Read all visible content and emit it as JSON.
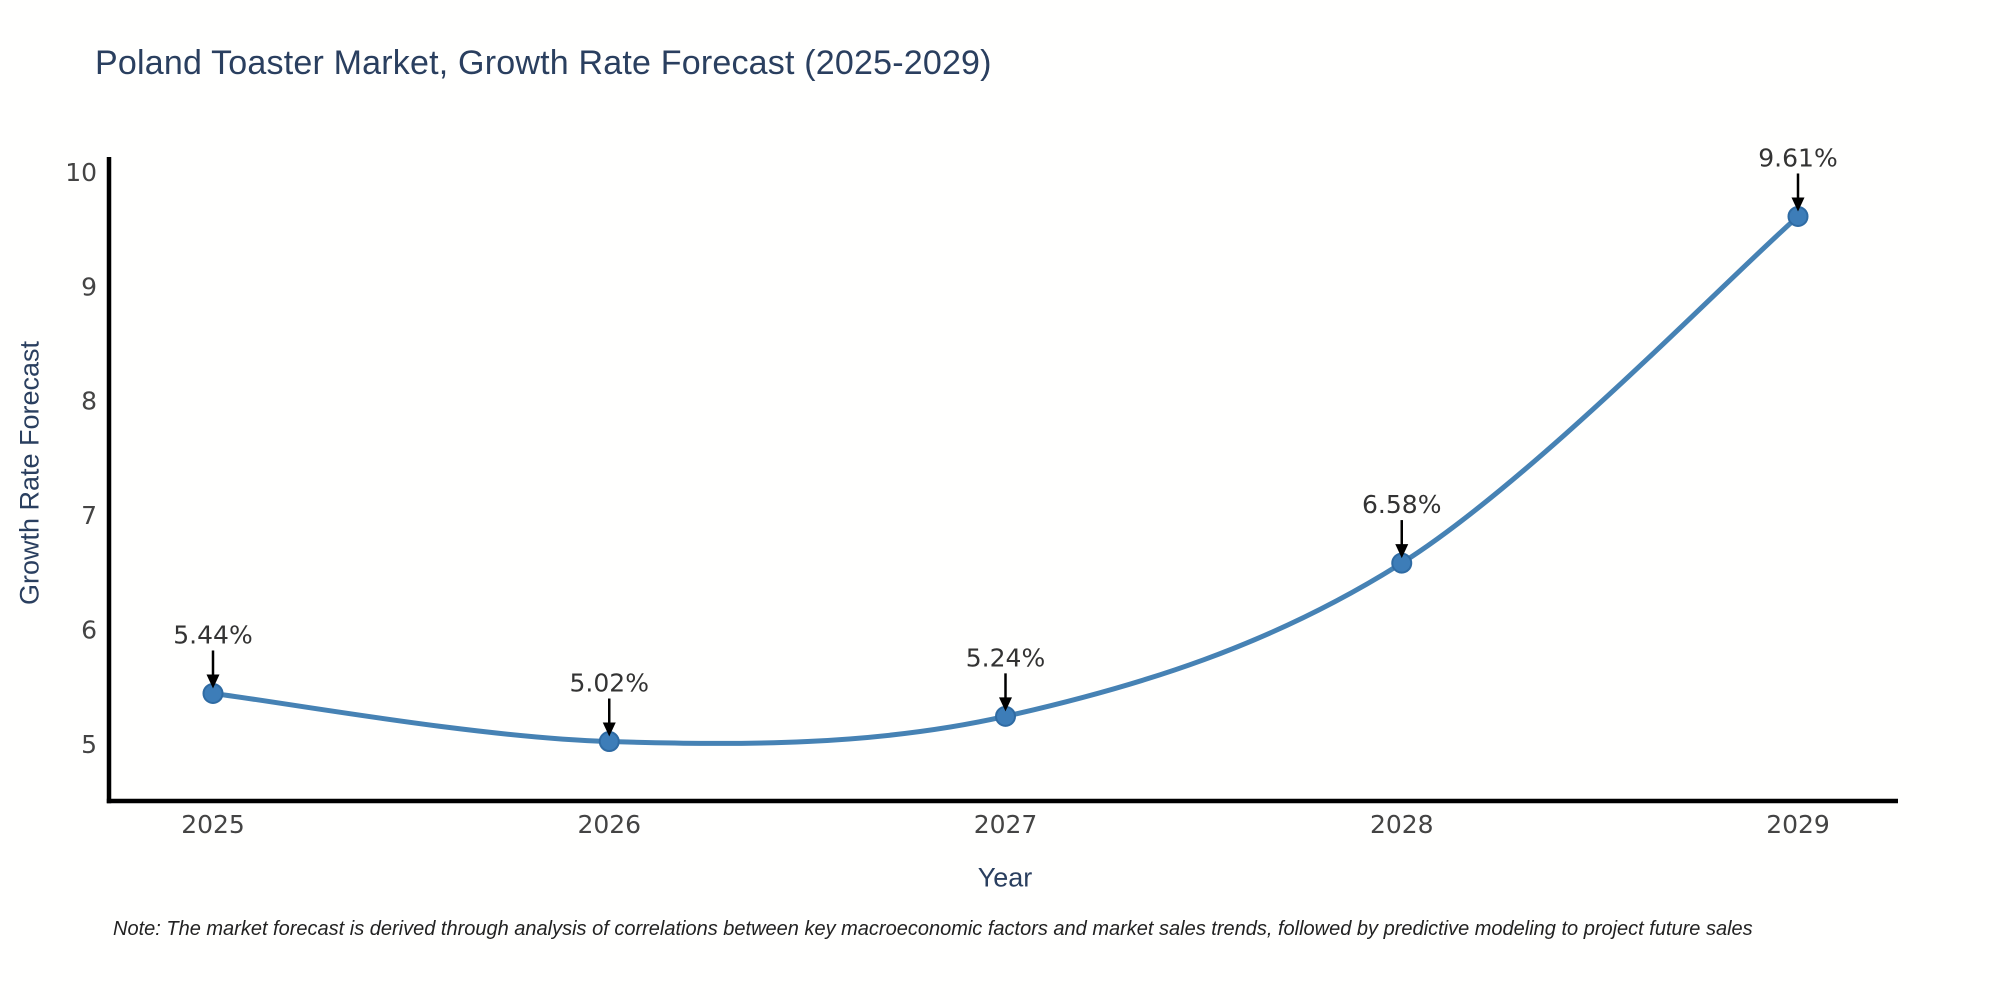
{
  "chart_data": {
    "type": "line",
    "title": "Poland Toaster Market, Growth Rate Forecast (2025-2029)",
    "xlabel": "Year",
    "ylabel": "Growth Rate Forecast",
    "categories": [
      "2025",
      "2026",
      "2027",
      "2028",
      "2029"
    ],
    "series": [
      {
        "name": "Growth Rate Forecast",
        "values": [
          5.44,
          5.02,
          5.24,
          6.58,
          9.61
        ],
        "point_labels": [
          "5.44%",
          "5.02%",
          "5.24%",
          "6.58%",
          "9.61%"
        ]
      }
    ],
    "yticks": [
      5,
      6,
      7,
      8,
      9,
      10
    ],
    "ylim": [
      4.5,
      10.13
    ],
    "grid": false,
    "legend": false,
    "curve": "spline",
    "colors": {
      "line": "#4682b4",
      "marker_fill": "#3d7db8",
      "marker_stroke": "#2f6ba3",
      "axis": "#000000",
      "title_text": "#2a3f5f",
      "tick_text": "#444444",
      "annotation_text": "#333333"
    },
    "note": "Note: The market forecast is derived through analysis of correlations between key macroeconomic factors and market sales trends, followed by predictive modeling to project future sales"
  }
}
